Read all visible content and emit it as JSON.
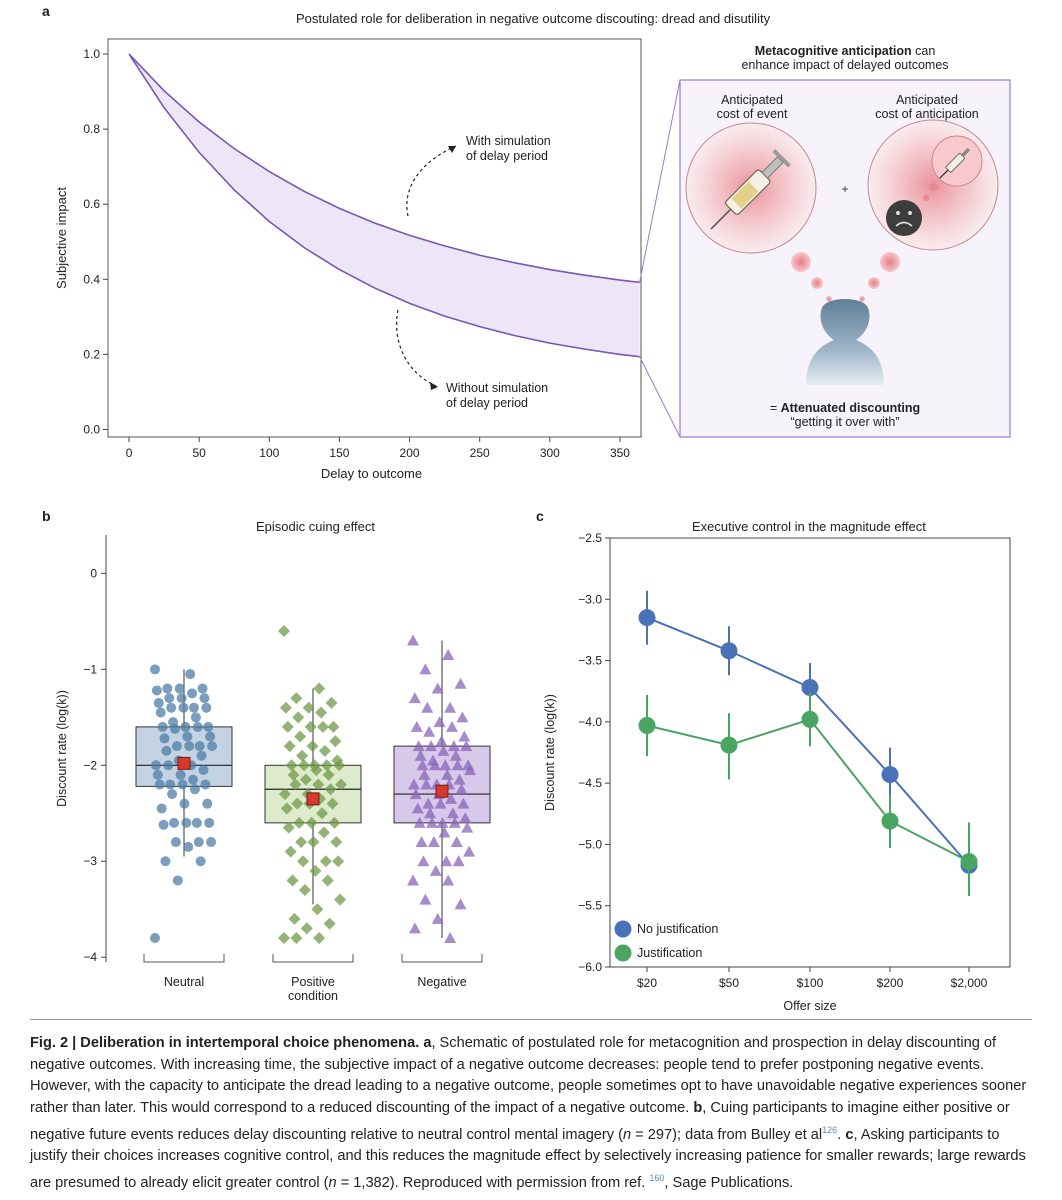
{
  "figure": {
    "panel_a": {
      "letter": "a",
      "title": "Postulated role for deliberation in negative outcome discouting: dread and disutility",
      "inset": {
        "heading_bold": "Metacognitive anticipation",
        "heading_rest": " can",
        "heading_line2": "enhance impact of delayed outcomes",
        "left_label_1": "Anticipated",
        "left_label_2": "cost of event",
        "right_label_1": "Anticipated",
        "right_label_2": "cost of anticipation",
        "plus": "+",
        "result_prefix": "= ",
        "result_bold": "Attenuated discounting",
        "result_quote": "“getting it over with”"
      },
      "annotations": {
        "with_1": "With simulation",
        "with_2": "of delay period",
        "without_1": "Without simulation",
        "without_2": "of delay period"
      }
    },
    "panel_b": {
      "letter": "b",
      "title": "Episodic cuing effect"
    },
    "panel_c": {
      "letter": "c",
      "title": "Executive control in the magnitude effect"
    }
  },
  "caption": {
    "title": "Fig. 2 | Deliberation in intertemporal choice phenomena.",
    "part_a_label": " a",
    "part_a": ", Schematic of postulated role for metacognition and prospection in delay discounting of negative outcomes. With increasing time, the subjective impact of a negative outcome decreases: people tend to prefer postponing negative events. However, with the capacity to anticipate the dread leading to a negative outcome, people sometimes opt to have unavoidable negative experiences sooner rather than later. This would correspond to a reduced discounting of the impact of a negative outcome.",
    "part_b_label": " b",
    "part_b_1": ", Cuing participants to imagine either positive or negative future events reduces delay discounting relative to neutral control mental imagery (",
    "part_b_n": "n",
    "part_b_2": " = 297); data from Bulley et al",
    "part_b_ref": "126",
    "part_b_3": ". ",
    "part_c_label": "c",
    "part_c_1": ", Asking participants to justify their choices increases cognitive control, and this reduces the magnitude effect by selectively increasing patience for smaller rewards; large rewards are presumed to already elicit greater control (",
    "part_c_n": "n",
    "part_c_2": " = 1,382). Reproduced with permission from ref. ",
    "part_c_ref": "160",
    "part_c_3": ", Sage Publications."
  },
  "chart_data": [
    {
      "panel": "a",
      "type": "area",
      "title": "Postulated role for deliberation in negative outcome discouting: dread and disutility",
      "xlabel": "Delay to outcome",
      "ylabel": "Subjective impact",
      "xlim": [
        -15,
        365
      ],
      "ylim": [
        -0.02,
        1.04
      ],
      "xticks": [
        0,
        50,
        100,
        150,
        200,
        250,
        300,
        350
      ],
      "yticks": [
        0.0,
        0.2,
        0.4,
        0.6,
        0.8,
        1.0
      ],
      "ytick_labels": [
        "0.0",
        "0.2",
        "0.4",
        "0.6",
        "0.8",
        "1.0"
      ],
      "series": [
        {
          "name": "With simulation of delay period",
          "x": [
            0,
            25,
            50,
            75,
            100,
            125,
            150,
            175,
            200,
            225,
            250,
            275,
            300,
            325,
            350,
            364
          ],
          "y": [
            1.0,
            0.902,
            0.819,
            0.748,
            0.687,
            0.634,
            0.589,
            0.55,
            0.517,
            0.489,
            0.464,
            0.444,
            0.426,
            0.411,
            0.398,
            0.392
          ]
        },
        {
          "name": "Without simulation of delay period",
          "x": [
            0,
            25,
            50,
            75,
            100,
            125,
            150,
            175,
            200,
            225,
            250,
            275,
            300,
            325,
            350,
            364
          ],
          "y": [
            1.0,
            0.857,
            0.738,
            0.638,
            0.554,
            0.484,
            0.426,
            0.377,
            0.336,
            0.302,
            0.274,
            0.25,
            0.23,
            0.214,
            0.2,
            0.194
          ]
        }
      ],
      "colors": {
        "line": "#7b55b0",
        "fill": "#ece6f7"
      }
    },
    {
      "panel": "b",
      "type": "box",
      "title": "Episodic cuing effect",
      "ylabel": "Discount rate (log(k))",
      "ylim": [
        -4.05,
        0.4
      ],
      "yticks": [
        0,
        -1,
        -2,
        -3,
        -4
      ],
      "ytick_labels": [
        "0",
        "−1",
        "−2",
        "−3",
        "−4"
      ],
      "categories": [
        "Neutral",
        "Positive condition",
        "Negative"
      ],
      "category_lines": [
        [
          "Neutral"
        ],
        [
          "Positive",
          "condition"
        ],
        [
          "Negative"
        ]
      ],
      "groups": [
        {
          "name": "Neutral",
          "q1": -2.22,
          "median": -2.0,
          "q3": -1.6,
          "whisker_low": -2.95,
          "whisker_high": -1.0,
          "mean": -1.98,
          "marker": "circle",
          "color": "#4d7ea6",
          "box_fill": "#c4d3e3",
          "points": [
            -1.0,
            -1.05,
            -1.2,
            -1.2,
            -1.2,
            -1.22,
            -1.25,
            -1.3,
            -1.3,
            -1.3,
            -1.35,
            -1.4,
            -1.4,
            -1.4,
            -1.4,
            -1.45,
            -1.5,
            -1.55,
            -1.6,
            -1.6,
            -1.6,
            -1.6,
            -1.62,
            -1.7,
            -1.7,
            -1.72,
            -1.8,
            -1.8,
            -1.8,
            -1.8,
            -1.85,
            -1.9,
            -1.95,
            -2.0,
            -2.0,
            -2.0,
            -2.05,
            -2.1,
            -2.1,
            -2.15,
            -2.2,
            -2.2,
            -2.2,
            -2.2,
            -2.25,
            -2.3,
            -2.4,
            -2.4,
            -2.45,
            -2.6,
            -2.6,
            -2.6,
            -2.6,
            -2.62,
            -2.8,
            -2.8,
            -2.8,
            -2.85,
            -3.0,
            -3.0,
            -3.2,
            -3.8
          ]
        },
        {
          "name": "Positive condition",
          "q1": -2.6,
          "median": -2.25,
          "q3": -2.0,
          "whisker_low": -3.45,
          "whisker_high": -1.2,
          "mean": -2.35,
          "marker": "diamond",
          "color": "#6f9a4a",
          "box_fill": "#dfeacd",
          "points": [
            -0.6,
            -1.2,
            -1.3,
            -1.35,
            -1.4,
            -1.4,
            -1.45,
            -1.5,
            -1.6,
            -1.6,
            -1.6,
            -1.6,
            -1.7,
            -1.75,
            -1.8,
            -1.8,
            -1.85,
            -1.9,
            -1.95,
            -2.0,
            -2.0,
            -2.0,
            -2.0,
            -2.0,
            -2.05,
            -2.1,
            -2.1,
            -2.15,
            -2.2,
            -2.2,
            -2.2,
            -2.25,
            -2.3,
            -2.3,
            -2.35,
            -2.4,
            -2.4,
            -2.4,
            -2.45,
            -2.5,
            -2.6,
            -2.6,
            -2.6,
            -2.65,
            -2.7,
            -2.8,
            -2.8,
            -2.8,
            -2.9,
            -3.0,
            -3.0,
            -3.0,
            -3.1,
            -3.2,
            -3.2,
            -3.3,
            -3.4,
            -3.5,
            -3.6,
            -3.65,
            -3.7,
            -3.8,
            -3.8,
            -3.8
          ]
        },
        {
          "name": "Negative",
          "q1": -2.6,
          "median": -2.3,
          "q3": -1.8,
          "whisker_low": -3.8,
          "whisker_high": -0.7,
          "mean": -2.27,
          "marker": "triangle",
          "color": "#8a64b8",
          "box_fill": "#d7c9ea",
          "points": [
            -0.7,
            -0.85,
            -1.0,
            -1.15,
            -1.2,
            -1.3,
            -1.4,
            -1.4,
            -1.5,
            -1.55,
            -1.6,
            -1.6,
            -1.65,
            -1.7,
            -1.75,
            -1.8,
            -1.8,
            -1.8,
            -1.8,
            -1.85,
            -1.9,
            -1.9,
            -1.95,
            -2.0,
            -2.0,
            -2.0,
            -2.0,
            -2.0,
            -2.05,
            -2.1,
            -2.1,
            -2.15,
            -2.2,
            -2.2,
            -2.2,
            -2.2,
            -2.25,
            -2.3,
            -2.3,
            -2.35,
            -2.4,
            -2.4,
            -2.4,
            -2.45,
            -2.5,
            -2.5,
            -2.55,
            -2.6,
            -2.6,
            -2.6,
            -2.6,
            -2.65,
            -2.7,
            -2.8,
            -2.8,
            -2.8,
            -2.9,
            -3.0,
            -3.0,
            -3.0,
            -3.1,
            -3.2,
            -3.2,
            -3.4,
            -3.45,
            -3.6,
            -3.7,
            -3.8
          ]
        }
      ],
      "mean_marker_color": "#d63a2f"
    },
    {
      "panel": "c",
      "type": "line",
      "title": "Executive control in the magnitude effect",
      "xlabel": "Offer size",
      "ylabel": "Discount rate (log(k))",
      "categories": [
        "$20",
        "$50",
        "$100",
        "$200",
        "$2,000"
      ],
      "ylim": [
        -6.0,
        -2.5
      ],
      "yticks": [
        -2.5,
        -3.0,
        -3.5,
        -4.0,
        -4.5,
        -5.0,
        -5.5,
        -6.0
      ],
      "ytick_labels": [
        "−2.5",
        "−3.0",
        "−3.5",
        "−4.0",
        "−4.5",
        "−5.0",
        "−5.5",
        "−6.0"
      ],
      "legend_position": "bottom-left",
      "series": [
        {
          "name": "No justification",
          "color": "#4a72b8",
          "values": [
            -3.15,
            -3.42,
            -3.72,
            -4.43,
            -5.17
          ],
          "err_low": [
            -3.37,
            -3.62,
            -3.92,
            -4.63,
            -5.37
          ],
          "err_high": [
            -2.93,
            -3.22,
            -3.52,
            -4.21,
            -4.97
          ]
        },
        {
          "name": "Justification",
          "color": "#4aa462",
          "values": [
            -4.03,
            -4.19,
            -3.98,
            -4.81,
            -5.14
          ],
          "err_low": [
            -4.28,
            -4.47,
            -4.2,
            -5.03,
            -5.42
          ],
          "err_high": [
            -3.78,
            -3.93,
            -3.76,
            -4.59,
            -4.82
          ]
        }
      ]
    }
  ]
}
